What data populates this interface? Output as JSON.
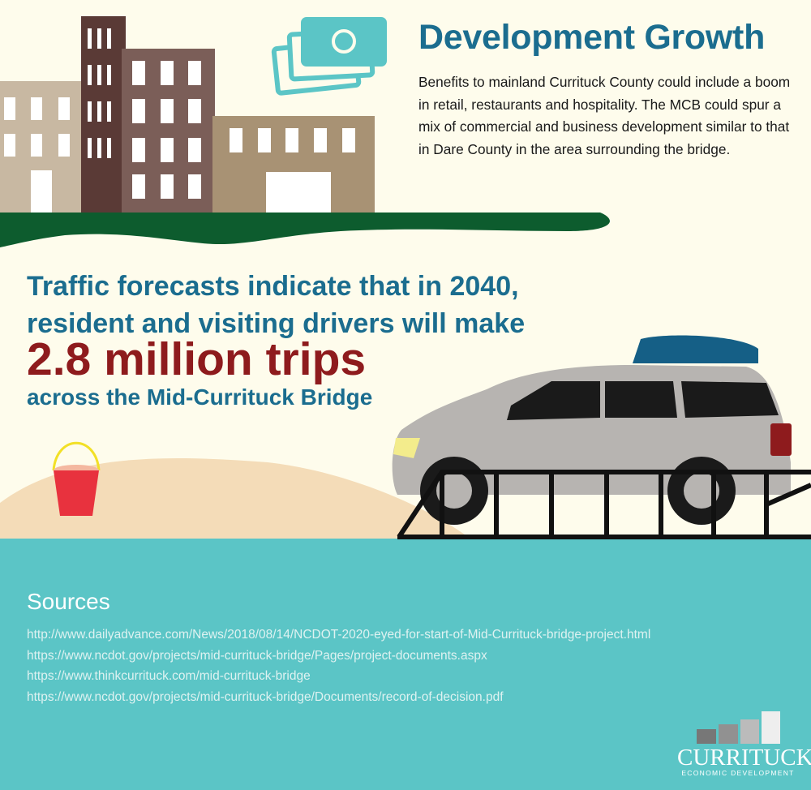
{
  "header": {
    "title": "Development Growth",
    "description": "Benefits to mainland Currituck County could include a boom in retail, restaurants and hospitality. The MCB could spur a mix of commercial and business development similar to that in Dare County in the area surrounding the bridge."
  },
  "forecast": {
    "line1": "Traffic forecasts indicate that in 2040,",
    "line2": "resident and visiting drivers will make",
    "highlight": "2.8 million trips",
    "line3": "across the Mid-Currituck Bridge"
  },
  "sources": {
    "heading": "Sources",
    "links": [
      "http://www.dailyadvance.com/News/2018/08/14/NCDOT-2020-eyed-for-start-of-Mid-Currituck-bridge-project.html",
      "https://www.ncdot.gov/projects/mid-currituck-bridge/Pages/project-documents.aspx",
      "https://www.thinkcurrituck.com/mid-currituck-bridge",
      "https://www.ncdot.gov/projects/mid-currituck-bridge/Documents/record-of-decision.pdf"
    ]
  },
  "logo": {
    "name": "CURRITUCK",
    "subtitle": "ECONOMIC DEVELOPMENT"
  },
  "icons": [
    "money-icon",
    "buildings-illustration",
    "car-illustration",
    "bucket-icon",
    "bridge-illustration"
  ],
  "colors": {
    "background": "#fefcec",
    "water": "#5bc5c6",
    "title_blue": "#1b6d8f",
    "highlight_red": "#8e1b1d",
    "grass": "#0d5c2e"
  }
}
